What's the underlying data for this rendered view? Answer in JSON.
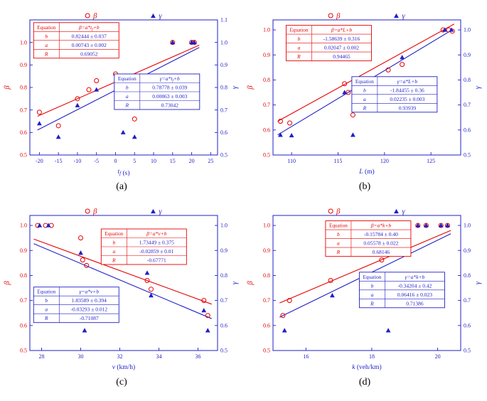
{
  "figure": {
    "background": "#ffffff"
  },
  "colors": {
    "red": "#e60000",
    "blue": "#1f1fc8",
    "black": "#000000"
  },
  "chart_data": [
    {
      "type": "scatter",
      "caption": "(a)",
      "xlabel_var": "t~f~",
      "xlabel_unit": " (s)",
      "xlim": [
        -22.5,
        26.8
      ],
      "xticks": [
        -20,
        -15,
        -10,
        -5,
        0,
        5,
        10,
        15,
        20,
        25
      ],
      "ylim": [
        0.5,
        1.1
      ],
      "yticks_left": [
        0.5,
        0.6,
        0.7,
        0.8,
        0.9,
        1.0
      ],
      "yticks_right": [
        0.5,
        0.6,
        0.7,
        0.8,
        0.9,
        1.0,
        1.1
      ],
      "ylabel_left": "β",
      "ylabel_right": "γ",
      "series": [
        {
          "name": "β",
          "key": "beta",
          "marker": "circle-open",
          "color": "red",
          "points": [
            [
              -20,
              0.69
            ],
            [
              -15,
              0.63
            ],
            [
              -10,
              0.75
            ],
            [
              -7,
              0.79
            ],
            [
              -5,
              0.83
            ],
            [
              0,
              0.86
            ],
            [
              5,
              0.66
            ],
            [
              10,
              0.84
            ],
            [
              15,
              1.0
            ],
            [
              20,
              1.0
            ],
            [
              20.7,
              1.0
            ]
          ],
          "fit": {
            "a": 0.00743,
            "b": 0.82444,
            "x1": -20.5,
            "x2": 22
          }
        },
        {
          "name": "γ",
          "key": "gamma",
          "marker": "triangle-filled",
          "color": "blue",
          "points": [
            [
              -20,
              0.64
            ],
            [
              -15,
              0.58
            ],
            [
              -10,
              0.72
            ],
            [
              -5,
              0.79
            ],
            [
              2,
              0.6
            ],
            [
              5,
              0.58
            ],
            [
              10,
              0.8
            ],
            [
              15,
              1.0
            ],
            [
              20,
              1.0
            ],
            [
              20.7,
              1.0
            ]
          ],
          "fit": {
            "a": 0.00863,
            "b": 0.78778,
            "x1": -20.5,
            "x2": 22
          }
        }
      ],
      "tables": [
        {
          "color": "red",
          "fx": 0.02,
          "fy": 0.02,
          "header": "Equation",
          "equation": "β=a*t~f~+b",
          "rows": [
            [
              "b",
              "0.82444 ± 0.037"
            ],
            [
              "a",
              "0.00743 ± 0.002"
            ],
            [
              "R",
              "0.69052"
            ]
          ]
        },
        {
          "color": "blue",
          "fx": 0.45,
          "fy": 0.4,
          "header": "Equation",
          "equation": "γ=a*t~f~+b",
          "rows": [
            [
              "b",
              "0.78778 ± 0.039"
            ],
            [
              "a",
              "0.00863 ± 0.003"
            ],
            [
              "R",
              "0.73042"
            ]
          ]
        }
      ]
    },
    {
      "type": "scatter",
      "caption": "(b)",
      "xlabel_var": "L",
      "xlabel_unit": " (m)",
      "xlim": [
        108,
        128.2
      ],
      "xticks": [
        110,
        115,
        120,
        125
      ],
      "ylim": [
        0.5,
        1.04
      ],
      "yticks_left": [
        0.5,
        0.6,
        0.7,
        0.8,
        0.9,
        1.0
      ],
      "yticks_right": [
        0.5,
        0.6,
        0.7,
        0.8,
        0.9,
        1.0
      ],
      "ylabel_left": "β",
      "ylabel_right": "γ",
      "series": [
        {
          "name": "β",
          "key": "beta",
          "marker": "circle-open",
          "color": "red",
          "points": [
            [
              108.8,
              0.635
            ],
            [
              109.8,
              0.628
            ],
            [
              115.7,
              0.785
            ],
            [
              116.1,
              0.75
            ],
            [
              116.6,
              0.66
            ],
            [
              120.4,
              0.84
            ],
            [
              121.9,
              0.862
            ],
            [
              126.3,
              1.0
            ],
            [
              126.9,
              1.0
            ],
            [
              127.3,
              0.995
            ]
          ],
          "fit": {
            "a": 0.02047,
            "b": -1.58639,
            "x1": 108.5,
            "x2": 127.5
          }
        },
        {
          "name": "γ",
          "key": "gamma",
          "marker": "triangle-filled",
          "color": "blue",
          "points": [
            [
              108.8,
              0.58
            ],
            [
              110.0,
              0.578
            ],
            [
              115.7,
              0.75
            ],
            [
              116.6,
              0.58
            ],
            [
              120.4,
              0.8
            ],
            [
              121.9,
              0.89
            ],
            [
              126.5,
              1.0
            ],
            [
              127.2,
              1.0
            ]
          ],
          "fit": {
            "a": 0.02235,
            "b": -1.84455,
            "x1": 108.5,
            "x2": 127.3
          }
        }
      ],
      "tables": [
        {
          "color": "red",
          "fx": 0.07,
          "fy": 0.04,
          "header": "Equation",
          "equation": "β=a*L+b",
          "rows": [
            [
              "b",
              "-1.58639 ± 0.316"
            ],
            [
              "a",
              "0.02047 ± 0.002"
            ],
            [
              "R",
              "0.94465"
            ]
          ]
        },
        {
          "color": "blue",
          "fx": 0.42,
          "fy": 0.42,
          "header": "Equation",
          "equation": "γ=a*L+b",
          "rows": [
            [
              "b",
              "-1.84455 ± 0.36"
            ],
            [
              "a",
              "0.02235 ± 0.003"
            ],
            [
              "R",
              "0.93939"
            ]
          ]
        }
      ]
    },
    {
      "type": "scatter",
      "caption": "(c)",
      "xlabel_var": "v",
      "xlabel_unit": " (km/h)",
      "xlim": [
        27.4,
        37.0
      ],
      "xticks": [
        28,
        30,
        32,
        34,
        36
      ],
      "ylim": [
        0.5,
        1.04
      ],
      "yticks_left": [
        0.5,
        0.6,
        0.7,
        0.8,
        0.9,
        1.0
      ],
      "yticks_right": [
        0.5,
        0.6,
        0.7,
        0.8,
        0.9,
        1.0
      ],
      "ylabel_left": "β",
      "ylabel_right": "γ",
      "series": [
        {
          "name": "β",
          "key": "beta",
          "marker": "circle-open",
          "color": "red",
          "points": [
            [
              27.8,
              1.0
            ],
            [
              28.2,
              1.0
            ],
            [
              28.5,
              1.0
            ],
            [
              30.0,
              0.95
            ],
            [
              30.1,
              0.862
            ],
            [
              30.3,
              0.84
            ],
            [
              33.4,
              0.78
            ],
            [
              33.6,
              0.745
            ],
            [
              36.3,
              0.7
            ],
            [
              36.5,
              0.64
            ]
          ],
          "fit": {
            "a": -0.02859,
            "b": 1.73449,
            "x1": 27.6,
            "x2": 36.7
          }
        },
        {
          "name": "γ",
          "key": "gamma",
          "marker": "triangle-filled",
          "color": "blue",
          "points": [
            [
              27.9,
              1.0
            ],
            [
              28.35,
              1.0
            ],
            [
              30.0,
              0.89
            ],
            [
              30.2,
              0.58
            ],
            [
              33.4,
              0.81
            ],
            [
              33.6,
              0.72
            ],
            [
              36.3,
              0.66
            ],
            [
              36.5,
              0.58
            ]
          ],
          "fit": {
            "a": -0.03293,
            "b": 1.83589,
            "x1": 27.6,
            "x2": 36.7
          }
        }
      ],
      "tables": [
        {
          "color": "red",
          "fx": 0.38,
          "fy": 0.1,
          "header": "Equation",
          "equation": "β=a*v+b",
          "rows": [
            [
              "b",
              "1.73449 ± 0.375"
            ],
            [
              "a",
              "-0.02859 ± 0.01"
            ],
            [
              "R",
              "-0.67771"
            ]
          ]
        },
        {
          "color": "blue",
          "fx": 0.02,
          "fy": 0.53,
          "header": "Equation",
          "equation": "γ=a*v+b",
          "rows": [
            [
              "b",
              "1.83589 ± 0.394"
            ],
            [
              "a",
              "-0.03293 ± 0.012"
            ],
            [
              "R",
              "-0.71087"
            ]
          ]
        }
      ]
    },
    {
      "type": "scatter",
      "caption": "(d)",
      "xlabel_var": "k",
      "xlabel_unit": " (veh/km)",
      "xlim": [
        15.0,
        20.7
      ],
      "xticks": [
        16,
        18,
        20
      ],
      "ylim": [
        0.5,
        1.04
      ],
      "yticks_left": [
        0.5,
        0.6,
        0.7,
        0.8,
        0.9,
        1.0
      ],
      "yticks_right": [
        0.5,
        0.6,
        0.7,
        0.8,
        0.9,
        1.0
      ],
      "ylabel_left": "β",
      "ylabel_right": "γ",
      "series": [
        {
          "name": "β",
          "key": "beta",
          "marker": "circle-open",
          "color": "red",
          "points": [
            [
              15.3,
              0.64
            ],
            [
              15.5,
              0.7
            ],
            [
              16.75,
              0.78
            ],
            [
              18.3,
              0.862
            ],
            [
              18.45,
              0.75
            ],
            [
              19.4,
              1.0
            ],
            [
              19.65,
              1.0
            ],
            [
              20.1,
              1.0
            ],
            [
              20.3,
              1.0
            ]
          ],
          "fit": {
            "a": 0.05578,
            "b": -0.15784,
            "x1": 15.2,
            "x2": 20.4
          }
        },
        {
          "name": "γ",
          "key": "gamma",
          "marker": "triangle-filled",
          "color": "blue",
          "points": [
            [
              15.35,
              0.58
            ],
            [
              16.8,
              0.72
            ],
            [
              18.3,
              0.8
            ],
            [
              18.5,
              0.58
            ],
            [
              19.4,
              1.0
            ],
            [
              19.65,
              1.0
            ],
            [
              20.1,
              1.0
            ],
            [
              20.3,
              1.0
            ]
          ],
          "fit": {
            "a": 0.06416,
            "b": -0.34204,
            "x1": 15.2,
            "x2": 20.4
          }
        }
      ],
      "tables": [
        {
          "color": "red",
          "fx": 0.28,
          "fy": 0.04,
          "header": "Equation",
          "equation": "β=a*k+b",
          "rows": [
            [
              "b",
              "-0.15784 ± 0.40"
            ],
            [
              "a",
              "0.05578 ± 0.022"
            ],
            [
              "R",
              "0.68146"
            ]
          ]
        },
        {
          "color": "blue",
          "fx": 0.46,
          "fy": 0.42,
          "header": "Equation",
          "equation": "γ=a*k+b",
          "rows": [
            [
              "b",
              "-0.34204 ± 0.42"
            ],
            [
              "a",
              "0.06416 ± 0.023"
            ],
            [
              "R",
              "0.71386"
            ]
          ]
        }
      ]
    }
  ]
}
